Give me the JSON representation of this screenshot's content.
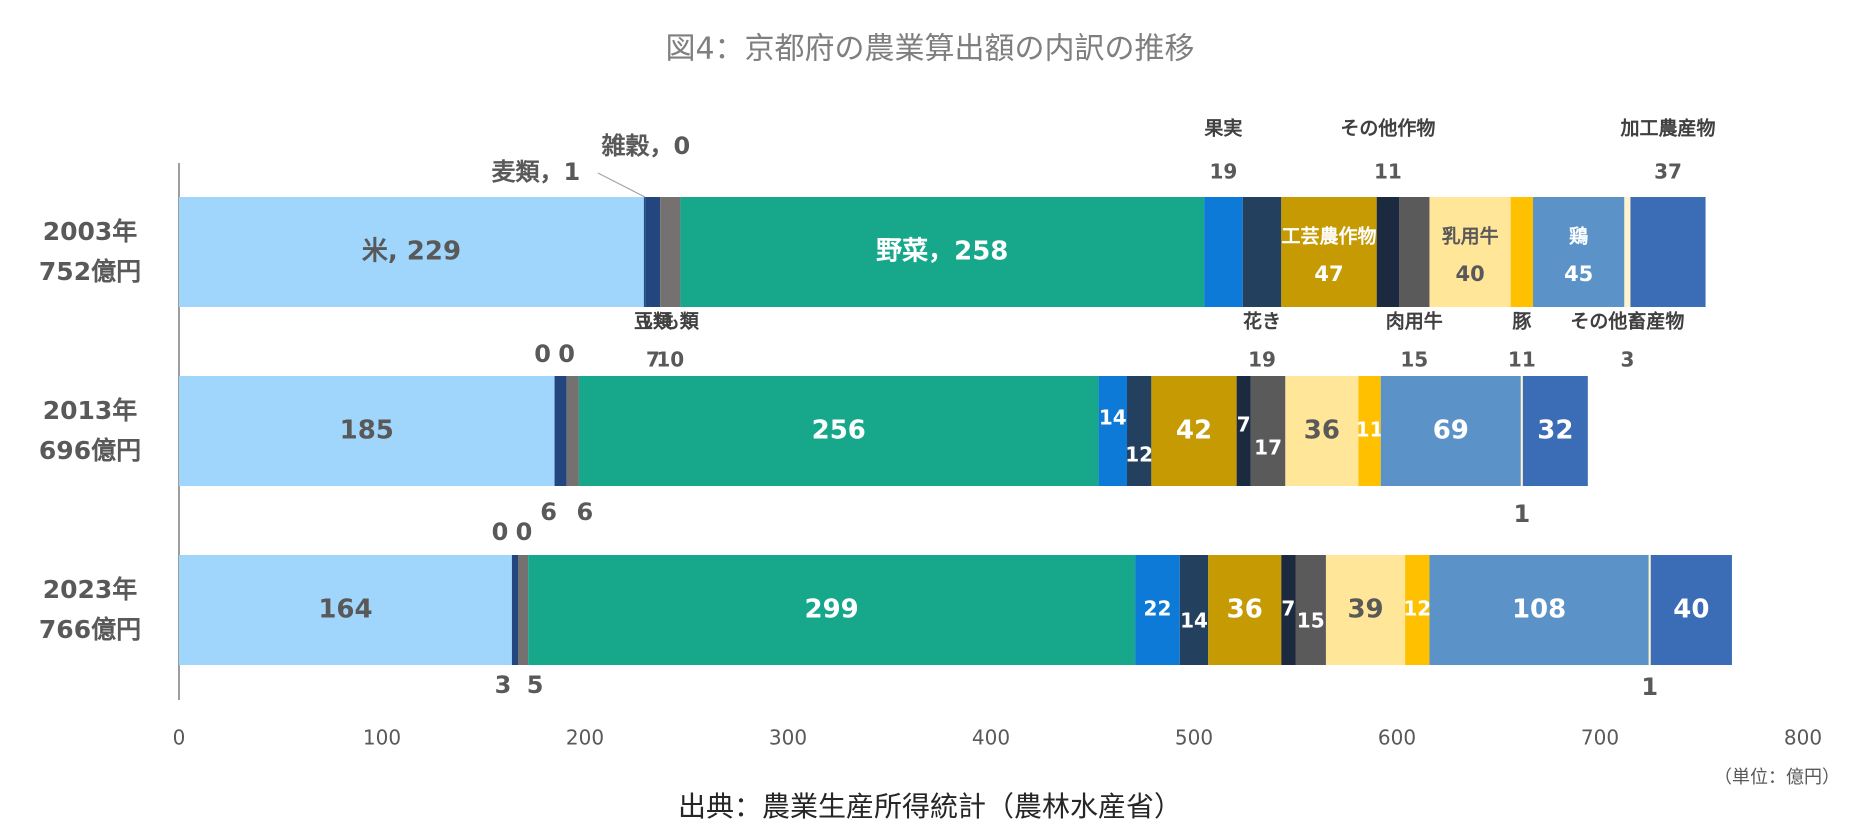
{
  "chart_data": {
    "type": "bar",
    "orientation": "horizontal",
    "stacked": true,
    "title": "図4：京都府の農業算出額の内訳の推移",
    "source": "出典：農業生産所得統計（農林水産省）",
    "unit": "（単位：億円）",
    "categories": [
      "2003年\n752億円",
      "2013年\n696億円",
      "2023年\n766億円"
    ],
    "xlim": [
      0,
      800
    ],
    "xticks": [
      0,
      100,
      200,
      300,
      400,
      500,
      600,
      700,
      800
    ],
    "grid": false,
    "series": [
      {
        "name": "米",
        "color": "#a0d6fb",
        "values": [
          229,
          185,
          164
        ],
        "value_labels": [
          "米, 229",
          null,
          null
        ]
      },
      {
        "name": "麦類",
        "color": "#1f4e89",
        "values": [
          1,
          0,
          0
        ],
        "value_labels": [
          "麦類，1",
          null,
          null
        ]
      },
      {
        "name": "雑穀",
        "color": "#2e3f66",
        "values": [
          0,
          0,
          0
        ],
        "value_labels": [
          "雑穀，0",
          null,
          null
        ]
      },
      {
        "name": "豆類",
        "color": "#23467e",
        "values": [
          7,
          6,
          3
        ]
      },
      {
        "name": "いも類",
        "color": "#767171",
        "values": [
          10,
          6,
          5
        ]
      },
      {
        "name": "野菜",
        "color": "#17a78b",
        "values": [
          258,
          256,
          299
        ],
        "value_labels": [
          "野菜，258",
          null,
          null
        ]
      },
      {
        "name": "果実",
        "color": "#0e7ad8",
        "values": [
          19,
          14,
          22
        ]
      },
      {
        "name": "花き",
        "color": "#24405f",
        "values": [
          19,
          12,
          14
        ]
      },
      {
        "name": "工芸農作物",
        "color": "#c59a03",
        "values": [
          47,
          42,
          36
        ]
      },
      {
        "name": "その他作物",
        "color": "#1c2a40",
        "values": [
          11,
          7,
          7
        ]
      },
      {
        "name": "肉用牛",
        "color": "#5a5a5a",
        "values": [
          15,
          17,
          15
        ]
      },
      {
        "name": "乳用牛",
        "color": "#ffe699",
        "values": [
          40,
          36,
          39
        ]
      },
      {
        "name": "豚",
        "color": "#ffc000",
        "values": [
          11,
          11,
          12
        ]
      },
      {
        "name": "鶏",
        "color": "#5b93c8",
        "values": [
          45,
          69,
          108
        ]
      },
      {
        "name": "その他畜産物",
        "color": "#fff2cc",
        "values": [
          3,
          1,
          1
        ]
      },
      {
        "name": "加工農産物",
        "color": "#3a6db5",
        "values": [
          37,
          32,
          40
        ]
      }
    ]
  }
}
